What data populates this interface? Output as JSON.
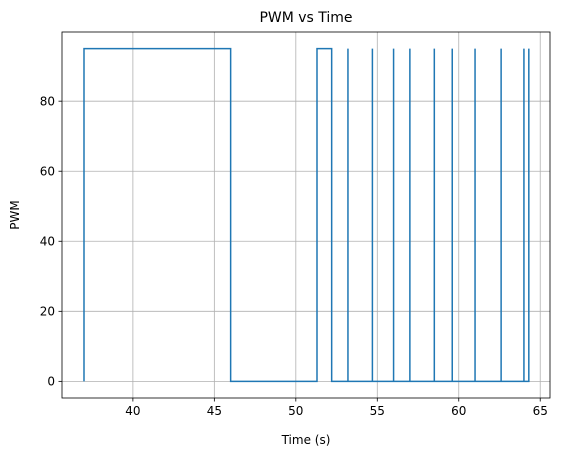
{
  "chart_data": {
    "type": "line",
    "title": "PWM vs Time",
    "xlabel": "Time (s)",
    "ylabel": "PWM",
    "xlim": [
      35.65,
      65.6
    ],
    "ylim": [
      -4.75,
      99.75
    ],
    "xticks": [
      40,
      45,
      50,
      55,
      60,
      65
    ],
    "yticks": [
      0,
      20,
      40,
      60,
      80
    ],
    "grid": true,
    "series": [
      {
        "color": "#1f77b4",
        "step": true,
        "x": [
          37.0,
          37.0,
          46.0,
          46.0,
          51.3,
          51.3,
          52.2,
          52.2,
          53.2,
          53.2,
          54.7,
          54.7,
          56.0,
          56.0,
          57.0,
          57.0,
          58.5,
          58.5,
          59.6,
          59.6,
          61.0,
          61.0,
          62.6,
          62.6,
          64.0,
          64.0,
          64.3
        ],
        "y": [
          0,
          95,
          95,
          0,
          0,
          95,
          95,
          0,
          95,
          0,
          95,
          0,
          95,
          0,
          95,
          0,
          95,
          0,
          95,
          0,
          95,
          0,
          95,
          0,
          95,
          0,
          95
        ]
      }
    ]
  }
}
